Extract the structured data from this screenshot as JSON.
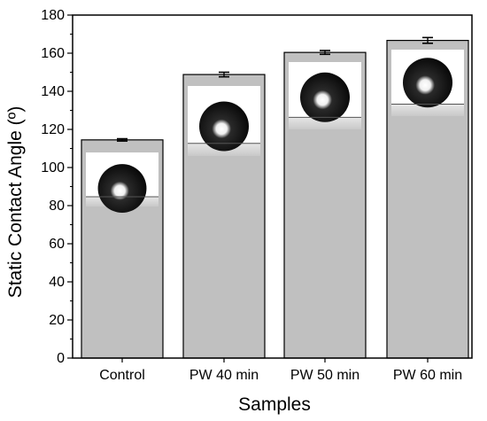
{
  "chart_data": {
    "type": "bar",
    "xlabel": "Samples",
    "ylabel": "Static Contact Angle (º)",
    "categories": [
      "Control",
      "PW 40 min",
      "PW 50 min",
      "PW 60 min"
    ],
    "values": [
      114.5,
      148.8,
      160.4,
      166.7
    ],
    "error": [
      0.6,
      1.2,
      1.0,
      1.5
    ],
    "ylim": [
      0,
      180
    ],
    "yticks": [
      0,
      20,
      40,
      60,
      80,
      100,
      120,
      140,
      160,
      180
    ],
    "bar_color": "#c0c0c0",
    "insets": "water droplet photograph inset within each bar",
    "grid": false,
    "legend": "none"
  }
}
